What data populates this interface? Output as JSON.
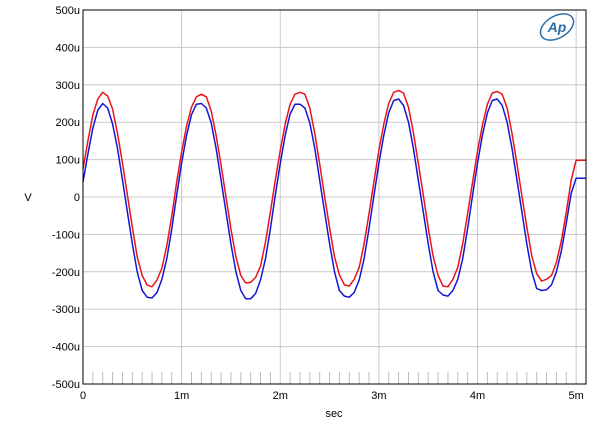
{
  "chart_data": {
    "type": "line",
    "title": "",
    "xlabel": "sec",
    "ylabel": "V",
    "xlim": [
      0,
      5.1
    ],
    "ylim": [
      -500,
      500
    ],
    "x_unit_note": "x in milliseconds, y in microvolts as printed by tick labels",
    "x_ticks": [
      0,
      1,
      2,
      3,
      4,
      5
    ],
    "x_tick_labels": [
      "0",
      "1m",
      "2m",
      "3m",
      "4m",
      "5m"
    ],
    "y_ticks": [
      500,
      400,
      300,
      200,
      100,
      0,
      -100,
      -200,
      -300,
      -400,
      -500
    ],
    "y_tick_labels": [
      "500u",
      "400u",
      "300u",
      "200u",
      "100u",
      "0",
      "-100u",
      "-200u",
      "-300u",
      "-400u",
      "-500u"
    ],
    "grid": true,
    "series": [
      {
        "color": "#e8141b",
        "x": [
          0,
          0.05,
          0.1,
          0.15,
          0.2,
          0.25,
          0.3,
          0.35,
          0.4,
          0.45,
          0.5,
          0.55,
          0.6,
          0.65,
          0.7,
          0.75,
          0.8,
          0.85,
          0.9,
          0.95,
          1.0,
          1.05,
          1.1,
          1.15,
          1.2,
          1.25,
          1.3,
          1.35,
          1.4,
          1.45,
          1.5,
          1.55,
          1.6,
          1.65,
          1.7,
          1.75,
          1.8,
          1.85,
          1.9,
          1.95,
          2.0,
          2.05,
          2.1,
          2.15,
          2.2,
          2.25,
          2.3,
          2.35,
          2.4,
          2.45,
          2.5,
          2.55,
          2.6,
          2.65,
          2.7,
          2.75,
          2.8,
          2.85,
          2.9,
          2.95,
          3.0,
          3.05,
          3.1,
          3.15,
          3.2,
          3.25,
          3.3,
          3.35,
          3.4,
          3.45,
          3.5,
          3.55,
          3.6,
          3.65,
          3.7,
          3.75,
          3.8,
          3.85,
          3.9,
          3.95,
          4.0,
          4.05,
          4.1,
          4.15,
          4.2,
          4.25,
          4.3,
          4.35,
          4.4,
          4.45,
          4.5,
          4.55,
          4.6,
          4.65,
          4.7,
          4.75,
          4.8,
          4.85,
          4.9,
          4.95,
          5.0,
          5.05,
          5.1
        ],
        "values": [
          75,
          150,
          220,
          262,
          280,
          270,
          235,
          170,
          90,
          5,
          -80,
          -160,
          -210,
          -235,
          -240,
          -222,
          -190,
          -130,
          -50,
          40,
          120,
          190,
          240,
          268,
          275,
          268,
          230,
          165,
          85,
          0,
          -85,
          -160,
          -210,
          -230,
          -228,
          -215,
          -185,
          -120,
          -40,
          45,
          125,
          195,
          248,
          275,
          280,
          275,
          238,
          170,
          88,
          2,
          -82,
          -160,
          -208,
          -235,
          -238,
          -220,
          -188,
          -125,
          -45,
          42,
          125,
          195,
          250,
          280,
          285,
          278,
          240,
          172,
          90,
          5,
          -82,
          -158,
          -210,
          -238,
          -240,
          -220,
          -188,
          -125,
          -45,
          40,
          122,
          192,
          248,
          278,
          282,
          275,
          238,
          170,
          88,
          3,
          -80,
          -158,
          -205,
          -225,
          -220,
          -210,
          -175,
          -118,
          -40,
          45,
          98,
          98,
          98
        ]
      },
      {
        "color": "#1515d4",
        "x": [
          0,
          0.05,
          0.1,
          0.15,
          0.2,
          0.25,
          0.3,
          0.35,
          0.4,
          0.45,
          0.5,
          0.55,
          0.6,
          0.65,
          0.7,
          0.75,
          0.8,
          0.85,
          0.9,
          0.95,
          1.0,
          1.05,
          1.1,
          1.15,
          1.2,
          1.25,
          1.3,
          1.35,
          1.4,
          1.45,
          1.5,
          1.55,
          1.6,
          1.65,
          1.7,
          1.75,
          1.8,
          1.85,
          1.9,
          1.95,
          2.0,
          2.05,
          2.1,
          2.15,
          2.2,
          2.25,
          2.3,
          2.35,
          2.4,
          2.45,
          2.5,
          2.55,
          2.6,
          2.65,
          2.7,
          2.75,
          2.8,
          2.85,
          2.9,
          2.95,
          3.0,
          3.05,
          3.1,
          3.15,
          3.2,
          3.25,
          3.3,
          3.35,
          3.4,
          3.45,
          3.5,
          3.55,
          3.6,
          3.65,
          3.7,
          3.75,
          3.8,
          3.85,
          3.9,
          3.95,
          4.0,
          4.05,
          4.1,
          4.15,
          4.2,
          4.25,
          4.3,
          4.35,
          4.4,
          4.45,
          4.5,
          4.55,
          4.6,
          4.65,
          4.7,
          4.75,
          4.8,
          4.85,
          4.9,
          4.95,
          5.0,
          5.05,
          5.1
        ],
        "values": [
          40,
          115,
          185,
          232,
          250,
          238,
          195,
          130,
          45,
          -40,
          -125,
          -200,
          -250,
          -268,
          -270,
          -255,
          -220,
          -165,
          -85,
          5,
          90,
          165,
          220,
          248,
          250,
          238,
          198,
          130,
          45,
          -40,
          -125,
          -200,
          -250,
          -272,
          -272,
          -258,
          -222,
          -165,
          -85,
          5,
          90,
          165,
          222,
          248,
          248,
          238,
          198,
          130,
          45,
          -40,
          -125,
          -200,
          -250,
          -265,
          -268,
          -255,
          -222,
          -165,
          -85,
          5,
          90,
          165,
          225,
          258,
          262,
          245,
          200,
          130,
          45,
          -40,
          -125,
          -200,
          -250,
          -262,
          -265,
          -250,
          -220,
          -165,
          -85,
          5,
          90,
          165,
          225,
          258,
          262,
          245,
          200,
          130,
          45,
          -40,
          -125,
          -200,
          -245,
          -250,
          -248,
          -235,
          -200,
          -145,
          -70,
          10,
          50,
          50,
          50
        ]
      }
    ]
  },
  "logo": "Ap"
}
